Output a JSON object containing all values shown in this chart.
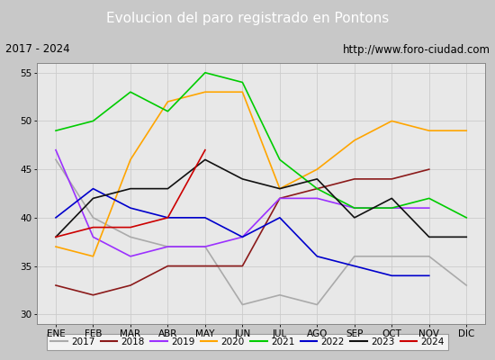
{
  "title": "Evolucion del paro registrado en Pontons",
  "subtitle_left": "2017 - 2024",
  "subtitle_right": "http://www.foro-ciudad.com",
  "title_bg": "#4a8fc0",
  "title_color": "white",
  "subtitle_bg": "#e8e8e8",
  "subtitle_color": "black",
  "months": [
    "ENE",
    "FEB",
    "MAR",
    "ABR",
    "MAY",
    "JUN",
    "JUL",
    "AGO",
    "SEP",
    "OCT",
    "NOV",
    "DIC"
  ],
  "ylim": [
    29,
    56
  ],
  "yticks": [
    30,
    35,
    40,
    45,
    50,
    55
  ],
  "series": {
    "2017": {
      "color": "#aaaaaa",
      "data": [
        46,
        40,
        38,
        37,
        37,
        31,
        32,
        31,
        36,
        36,
        36,
        33
      ]
    },
    "2018": {
      "color": "#8b1a1a",
      "data": [
        33,
        32,
        33,
        35,
        35,
        35,
        42,
        43,
        44,
        44,
        45,
        null
      ]
    },
    "2019": {
      "color": "#9b30ff",
      "data": [
        47,
        38,
        36,
        37,
        37,
        38,
        42,
        42,
        41,
        41,
        41,
        null
      ]
    },
    "2020": {
      "color": "#ffa500",
      "data": [
        37,
        36,
        46,
        52,
        53,
        53,
        43,
        45,
        48,
        50,
        49,
        49
      ]
    },
    "2021": {
      "color": "#00cc00",
      "data": [
        49,
        50,
        53,
        51,
        55,
        54,
        46,
        43,
        41,
        41,
        42,
        40
      ]
    },
    "2022": {
      "color": "#0000cc",
      "data": [
        40,
        43,
        41,
        40,
        40,
        38,
        40,
        36,
        35,
        34,
        34,
        null
      ]
    },
    "2023": {
      "color": "#111111",
      "data": [
        38,
        42,
        43,
        43,
        46,
        44,
        43,
        44,
        40,
        42,
        38,
        38
      ]
    },
    "2024": {
      "color": "#cc0000",
      "data": [
        38,
        39,
        39,
        40,
        47,
        null,
        null,
        null,
        null,
        null,
        null,
        null
      ]
    }
  },
  "legend_order": [
    "2017",
    "2018",
    "2019",
    "2020",
    "2021",
    "2022",
    "2023",
    "2024"
  ],
  "grid_color": "#cccccc",
  "plot_bg": "#e8e8e8",
  "fig_bg": "#c8c8c8"
}
